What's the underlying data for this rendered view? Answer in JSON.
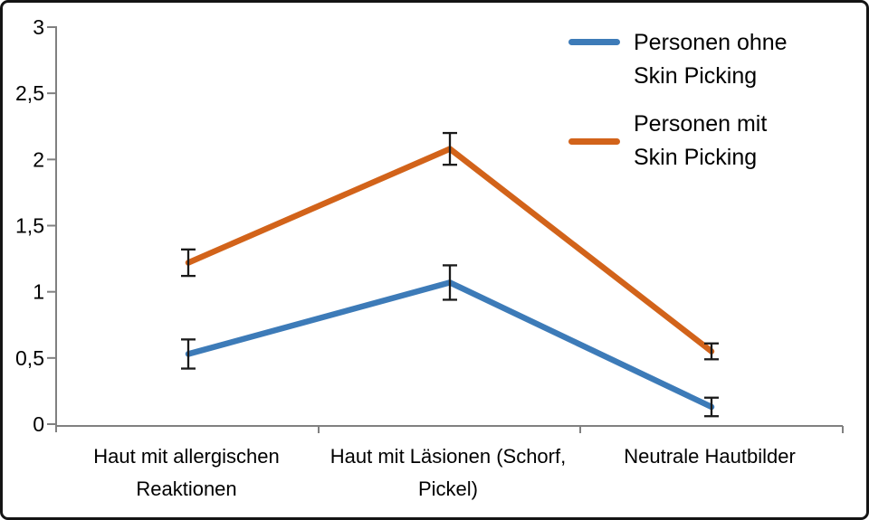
{
  "chart_data": {
    "type": "line",
    "title": "",
    "xlabel": "",
    "ylabel": "",
    "categories": [
      "Haut mit allergischen Reaktionen",
      "Haut mit Läsionen (Schorf, Pickel)",
      "Neutrale Hautbilder"
    ],
    "series": [
      {
        "name": "Personen ohne Skin Picking",
        "color": "#3d7bb8",
        "values": [
          0.53,
          1.07,
          0.13
        ],
        "error_bars": [
          0.11,
          0.13,
          0.07
        ]
      },
      {
        "name": "Personen mit Skin Picking",
        "color": "#d2631a",
        "values": [
          1.22,
          2.08,
          0.55
        ],
        "error_bars": [
          0.1,
          0.12,
          0.06
        ]
      }
    ],
    "ylim": [
      0,
      3
    ],
    "y_ticks": [
      3,
      2.5,
      2,
      1.5,
      1,
      0.5,
      0
    ],
    "y_tick_labels": [
      "3",
      "2,5",
      "2",
      "1,5",
      "1",
      "0,5",
      "0"
    ],
    "decimal_separator": ",",
    "grid": false,
    "legend_position": "top-right",
    "axis_color": "#808080",
    "error_bar_color": "#1a1a1a",
    "background_color": "#ffffff"
  },
  "legend": {
    "items": [
      {
        "label": "Personen ohne Skin Picking",
        "color": "#3d7bb8"
      },
      {
        "label": "Personen mit Skin Picking",
        "color": "#d2631a"
      }
    ]
  }
}
